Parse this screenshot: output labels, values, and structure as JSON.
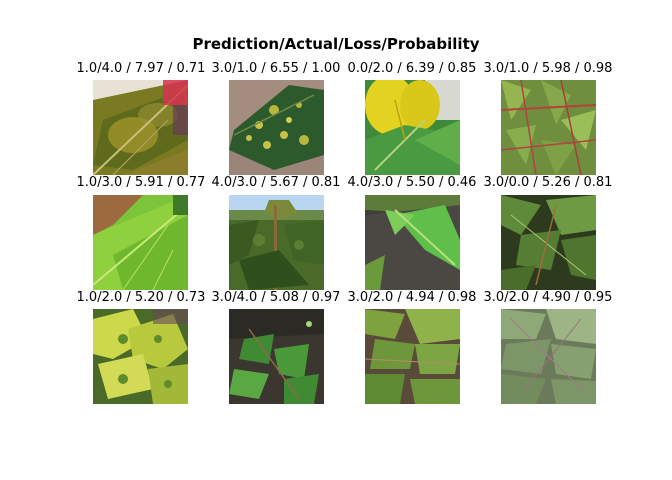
{
  "figure": {
    "title": "Prediction/Actual/Loss/Probability"
  },
  "cells": [
    {
      "label": "1.0/4.0 / 7.97 / 0.71",
      "prediction": "1.0",
      "actual": "4.0",
      "loss": 7.97,
      "probability": 0.71,
      "image": "cassava leaf, mottled yellow-green mosaic"
    },
    {
      "label": "3.0/1.0 / 6.55 / 1.00",
      "prediction": "3.0",
      "actual": "1.0",
      "loss": 6.55,
      "probability": 1.0,
      "image": "dark green leaf with yellow spots"
    },
    {
      "label": "0.0/2.0 / 6.39 / 0.85",
      "prediction": "0.0",
      "actual": "2.0",
      "loss": 6.39,
      "probability": 0.85,
      "image": "yellow and green cassava leaves"
    },
    {
      "label": "3.0/1.0 / 5.98 / 0.98",
      "prediction": "3.0",
      "actual": "1.0",
      "loss": 5.98,
      "probability": 0.98,
      "image": "cassava plant with red stems"
    },
    {
      "label": "1.0/3.0 / 5.91 / 0.77",
      "prediction": "1.0",
      "actual": "3.0",
      "loss": 5.91,
      "probability": 0.77,
      "image": "bright green leaf close-up"
    },
    {
      "label": "4.0/3.0 / 5.67 / 0.81",
      "prediction": "4.0",
      "actual": "3.0",
      "loss": 5.67,
      "probability": 0.81,
      "image": "cassava plant against blue sky"
    },
    {
      "label": "4.0/3.0 / 5.50 / 0.46",
      "prediction": "4.0",
      "actual": "3.0",
      "loss": 5.5,
      "probability": 0.46,
      "image": "green leaf over dark soil"
    },
    {
      "label": "3.0/0.0 / 5.26 / 0.81",
      "prediction": "3.0",
      "actual": "0.0",
      "loss": 5.26,
      "probability": 0.81,
      "image": "cassava foliage with dark background"
    },
    {
      "label": "1.0/2.0 / 5.20 / 0.73",
      "prediction": "1.0",
      "actual": "2.0",
      "loss": 5.2,
      "probability": 0.73,
      "image": "yellow-green mosaic leaves"
    },
    {
      "label": "3.0/4.0 / 5.08 / 0.97",
      "prediction": "3.0",
      "actual": "4.0",
      "loss": 5.08,
      "probability": 0.97,
      "image": "small cassava plant on soil"
    },
    {
      "label": "3.0/2.0 / 4.94 / 0.98",
      "prediction": "3.0",
      "actual": "2.0",
      "loss": 4.94,
      "probability": 0.98,
      "image": "cassava field foliage"
    },
    {
      "label": "3.0/2.0 / 4.90 / 0.95",
      "prediction": "3.0",
      "actual": "2.0",
      "loss": 4.9,
      "probability": 0.95,
      "image": "cassava leaves, muted green"
    }
  ]
}
